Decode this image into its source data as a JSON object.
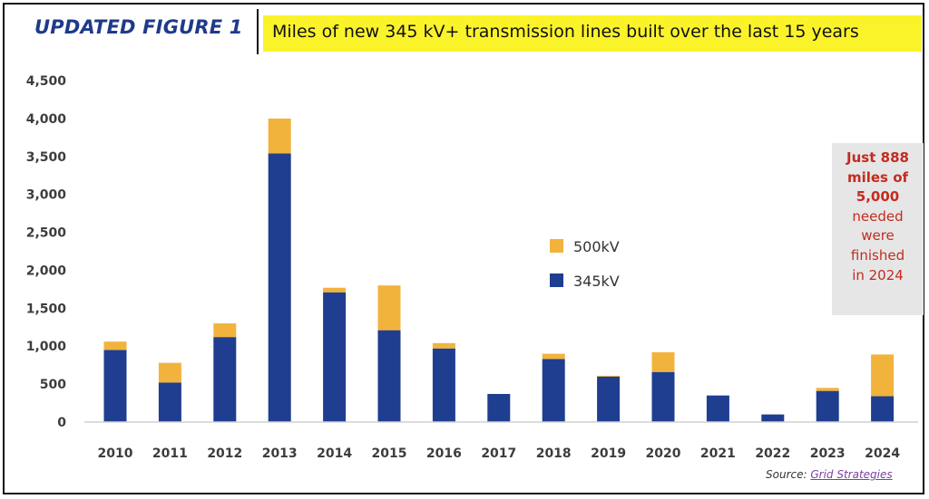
{
  "header": {
    "figure_label": "UPDATED FIGURE 1",
    "title": "Miles of new 345 kV+ transmission lines built over the last 15 years"
  },
  "colors": {
    "kv345": "#1f3e8f",
    "kv500": "#f2b33d",
    "title_highlight": "#fbf32a",
    "callout_text": "#c42b1f"
  },
  "chart_data": {
    "type": "bar",
    "stacked": true,
    "title": "Miles of new 345 kV+ transmission lines built over the last 15 years",
    "xlabel": "",
    "ylabel": "",
    "ylim": [
      0,
      4500
    ],
    "yticks": [
      0,
      500,
      1000,
      1500,
      2000,
      2500,
      3000,
      3500,
      4000,
      4500
    ],
    "ytick_labels": [
      "0",
      "500",
      "1,000",
      "1,500",
      "2,000",
      "2,500",
      "3,000",
      "3,500",
      "4,000",
      "4,500"
    ],
    "categories": [
      "2010",
      "2011",
      "2012",
      "2013",
      "2014",
      "2015",
      "2016",
      "2017",
      "2018",
      "2019",
      "2020",
      "2021",
      "2022",
      "2023",
      "2024"
    ],
    "series": [
      {
        "name": "345kV",
        "color": "#1f3e8f",
        "values": [
          950,
          520,
          1120,
          3540,
          1710,
          1210,
          970,
          370,
          830,
          600,
          660,
          350,
          100,
          410,
          340
        ]
      },
      {
        "name": "500kV",
        "color": "#f2b33d",
        "values": [
          110,
          260,
          180,
          460,
          60,
          590,
          70,
          0,
          70,
          10,
          260,
          0,
          0,
          40,
          550
        ]
      }
    ],
    "legend": [
      {
        "label": "500kV",
        "color": "#f2b33d"
      },
      {
        "label": "345kV",
        "color": "#1f3e8f"
      }
    ],
    "legend_position": "center",
    "grid": false
  },
  "callout": {
    "line1": "Just 888",
    "line2": "miles of",
    "line3": "5,000",
    "line4": "needed",
    "line5": "were",
    "line6": "finished",
    "line7": "in 2024"
  },
  "source": {
    "prefix": "Source:",
    "link_text": "Grid Strategies"
  }
}
